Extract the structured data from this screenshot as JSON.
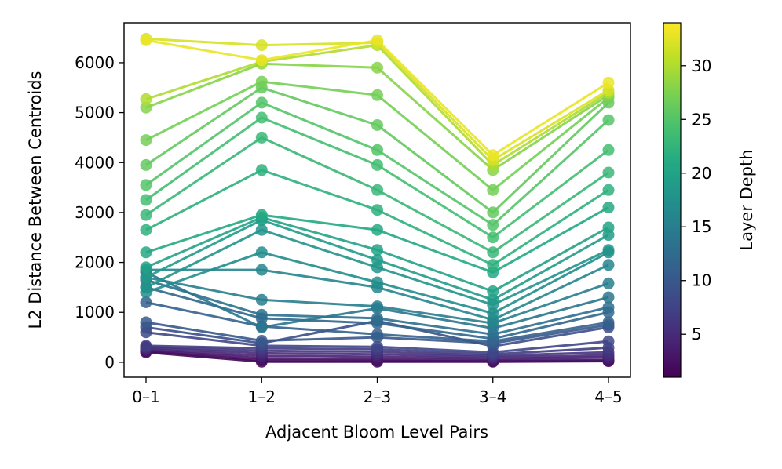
{
  "chart_data": {
    "type": "line",
    "xlabel": "Adjacent Bloom Level Pairs",
    "ylabel": "L2 Distance Between Centroids",
    "categories": [
      "0–1",
      "1–2",
      "2–3",
      "3–4",
      "4–5"
    ],
    "ylim": [
      -300,
      6800
    ],
    "yticks": [
      0,
      1000,
      2000,
      3000,
      4000,
      5000,
      6000
    ],
    "colorbar": {
      "label": "Layer Depth",
      "range": [
        1,
        34
      ],
      "ticks": [
        5,
        10,
        15,
        20,
        25,
        30
      ],
      "colormap": "viridis"
    },
    "grid": false,
    "series": [
      {
        "depth": 1,
        "values": [
          200,
          10,
          10,
          10,
          20
        ]
      },
      {
        "depth": 2,
        "values": [
          220,
          40,
          30,
          20,
          30
        ]
      },
      {
        "depth": 3,
        "values": [
          240,
          80,
          60,
          40,
          50
        ]
      },
      {
        "depth": 4,
        "values": [
          260,
          130,
          110,
          70,
          100
        ]
      },
      {
        "depth": 5,
        "values": [
          290,
          180,
          160,
          100,
          140
        ]
      },
      {
        "depth": 6,
        "values": [
          310,
          230,
          210,
          130,
          200
        ]
      },
      {
        "depth": 7,
        "values": [
          330,
          280,
          260,
          160,
          290
        ]
      },
      {
        "depth": 8,
        "values": [
          600,
          330,
          310,
          200,
          420
        ]
      },
      {
        "depth": 9,
        "values": [
          700,
          380,
          830,
          320,
          700
        ]
      },
      {
        "depth": 10,
        "values": [
          800,
          430,
          500,
          380,
          750
        ]
      },
      {
        "depth": 11,
        "values": [
          1200,
          720,
          560,
          420,
          800
        ]
      },
      {
        "depth": 12,
        "values": [
          1500,
          880,
          780,
          470,
          1000
        ]
      },
      {
        "depth": 13,
        "values": [
          1650,
          950,
          880,
          560,
          1100
        ]
      },
      {
        "depth": 14,
        "values": [
          1800,
          700,
          1080,
          680,
          1300
        ]
      },
      {
        "depth": 15,
        "values": [
          1700,
          1250,
          1120,
          780,
          1580
        ]
      },
      {
        "depth": 16,
        "values": [
          1850,
          1850,
          1500,
          850,
          1950
        ]
      },
      {
        "depth": 17,
        "values": [
          1400,
          2200,
          1600,
          980,
          2200
        ]
      },
      {
        "depth": 18,
        "values": [
          1500,
          2650,
          1900,
          1150,
          2250
        ]
      },
      {
        "depth": 19,
        "values": [
          1700,
          2850,
          2050,
          1250,
          2550
        ]
      },
      {
        "depth": 20,
        "values": [
          1900,
          2900,
          2250,
          1420,
          2700
        ]
      },
      {
        "depth": 21,
        "values": [
          2200,
          2950,
          2650,
          1800,
          3100
        ]
      },
      {
        "depth": 22,
        "values": [
          2650,
          3850,
          3050,
          1950,
          3450
        ]
      },
      {
        "depth": 23,
        "values": [
          2950,
          4500,
          3450,
          2200,
          3800
        ]
      },
      {
        "depth": 24,
        "values": [
          3250,
          4900,
          3950,
          2500,
          4250
        ]
      },
      {
        "depth": 25,
        "values": [
          3550,
          5200,
          4250,
          2750,
          4850
        ]
      },
      {
        "depth": 26,
        "values": [
          3950,
          5500,
          4750,
          3000,
          5200
        ]
      },
      {
        "depth": 27,
        "values": [
          4450,
          5620,
          5350,
          3450,
          5300
        ]
      },
      {
        "depth": 28,
        "values": [
          5100,
          5980,
          5900,
          3850,
          5350
        ]
      },
      {
        "depth": 30,
        "values": [
          5270,
          6020,
          6350,
          3950,
          5400
        ]
      },
      {
        "depth": 32,
        "values": [
          6480,
          6350,
          6400,
          4050,
          5450
        ]
      },
      {
        "depth": 33,
        "values": [
          6450,
          6050,
          6450,
          4150,
          5600
        ]
      }
    ]
  }
}
